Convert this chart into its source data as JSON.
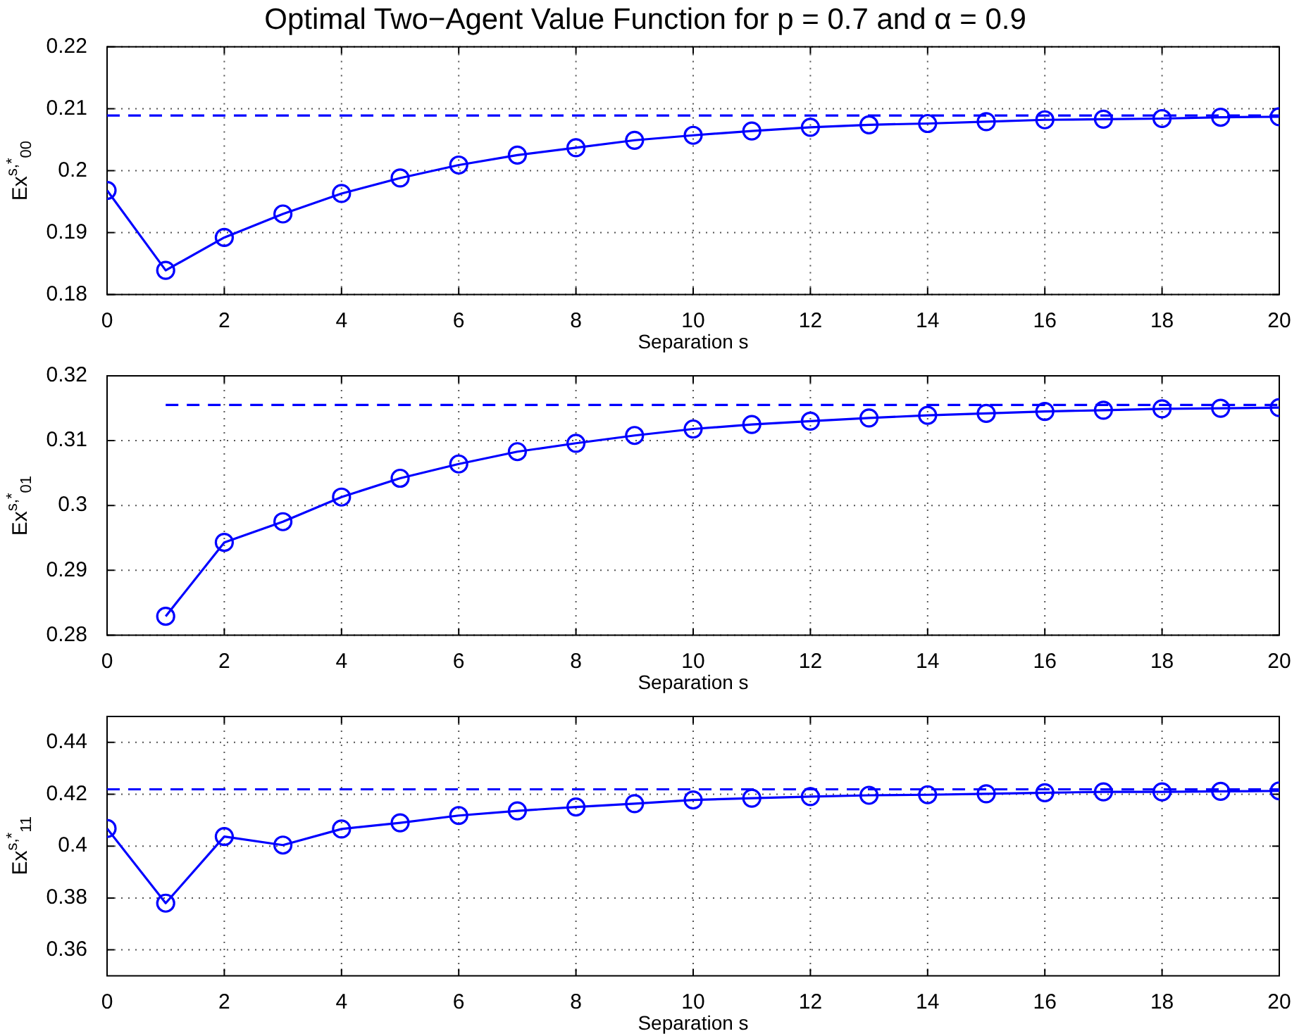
{
  "chart_data": [
    {
      "type": "line",
      "title": "Optimal Two−Agent Value Function for p = 0.7 and α = 0.9",
      "xlabel": "Separation s",
      "ylabel": "Ex$^{s,*}$$_{00}$",
      "x": [
        0,
        1,
        2,
        3,
        4,
        5,
        6,
        7,
        8,
        9,
        10,
        11,
        12,
        13,
        14,
        15,
        16,
        17,
        18,
        19,
        20
      ],
      "series": [
        {
          "color": "#0000ff",
          "values": [
            0.1968,
            0.1839,
            0.1892,
            0.193,
            0.1963,
            0.1988,
            0.2009,
            0.2025,
            0.2037,
            0.2049,
            0.2057,
            0.2064,
            0.207,
            0.2074,
            0.2076,
            0.2079,
            0.2082,
            0.2083,
            0.2084,
            0.2086,
            0.2087
          ]
        },
        {
          "color": "#0000ff",
          "x": [
            0,
            20
          ],
          "values": [
            0.2089,
            0.2089
          ],
          "line_style": "dashed",
          "marker": "none"
        }
      ],
      "xlim": [
        0,
        20
      ],
      "xticks": [
        0,
        2,
        4,
        6,
        8,
        10,
        12,
        14,
        16,
        18,
        20
      ],
      "ylim": [
        0.18,
        0.22
      ],
      "yticks": [
        0.18,
        0.19,
        0.2,
        0.21,
        0.22
      ],
      "grid": true,
      "marker": "circle",
      "line_style": "solid"
    },
    {
      "type": "line",
      "xlabel": "Separation s",
      "ylabel": "Ex$^{s,*}$$_{01}$",
      "x": [
        1,
        2,
        3,
        4,
        5,
        6,
        7,
        8,
        9,
        10,
        11,
        12,
        13,
        14,
        15,
        16,
        17,
        18,
        19,
        20
      ],
      "series": [
        {
          "color": "#0000ff",
          "values": [
            0.2829,
            0.2943,
            0.2975,
            0.3013,
            0.3042,
            0.3064,
            0.3083,
            0.3096,
            0.3108,
            0.3118,
            0.3125,
            0.313,
            0.3135,
            0.3139,
            0.3142,
            0.3145,
            0.3147,
            0.3149,
            0.315,
            0.3151
          ]
        },
        {
          "color": "#0000ff",
          "x": [
            1,
            20
          ],
          "values": [
            0.3155,
            0.3155
          ],
          "line_style": "dashed",
          "marker": "none"
        }
      ],
      "xlim": [
        0,
        20
      ],
      "xticks": [
        0,
        2,
        4,
        6,
        8,
        10,
        12,
        14,
        16,
        18,
        20
      ],
      "ylim": [
        0.28,
        0.32
      ],
      "yticks": [
        0.28,
        0.29,
        0.3,
        0.31,
        0.32
      ],
      "grid": true,
      "marker": "circle",
      "line_style": "solid"
    },
    {
      "type": "line",
      "xlabel": "Separation s",
      "ylabel": "Ex$^{s,*}$$_{11}$",
      "x": [
        0,
        1,
        2,
        3,
        4,
        5,
        6,
        7,
        8,
        9,
        10,
        11,
        12,
        13,
        14,
        15,
        16,
        17,
        18,
        19,
        20
      ],
      "series": [
        {
          "color": "#0000ff",
          "values": [
            0.4068,
            0.378,
            0.4037,
            0.4004,
            0.4066,
            0.409,
            0.4118,
            0.4136,
            0.4151,
            0.4164,
            0.4178,
            0.4185,
            0.4191,
            0.4196,
            0.4198,
            0.4202,
            0.4206,
            0.4209,
            0.4209,
            0.4211,
            0.4213
          ]
        },
        {
          "color": "#0000ff",
          "x": [
            0,
            20
          ],
          "values": [
            0.4219,
            0.4219
          ],
          "line_style": "dashed",
          "marker": "none"
        }
      ],
      "xlim": [
        0,
        20
      ],
      "xticks": [
        0,
        2,
        4,
        6,
        8,
        10,
        12,
        14,
        16,
        18,
        20
      ],
      "ylim": [
        0.35,
        0.45
      ],
      "yticks": [
        0.36,
        0.38,
        0.4,
        0.42,
        0.44
      ],
      "grid": true,
      "marker": "circle",
      "line_style": "solid"
    }
  ]
}
